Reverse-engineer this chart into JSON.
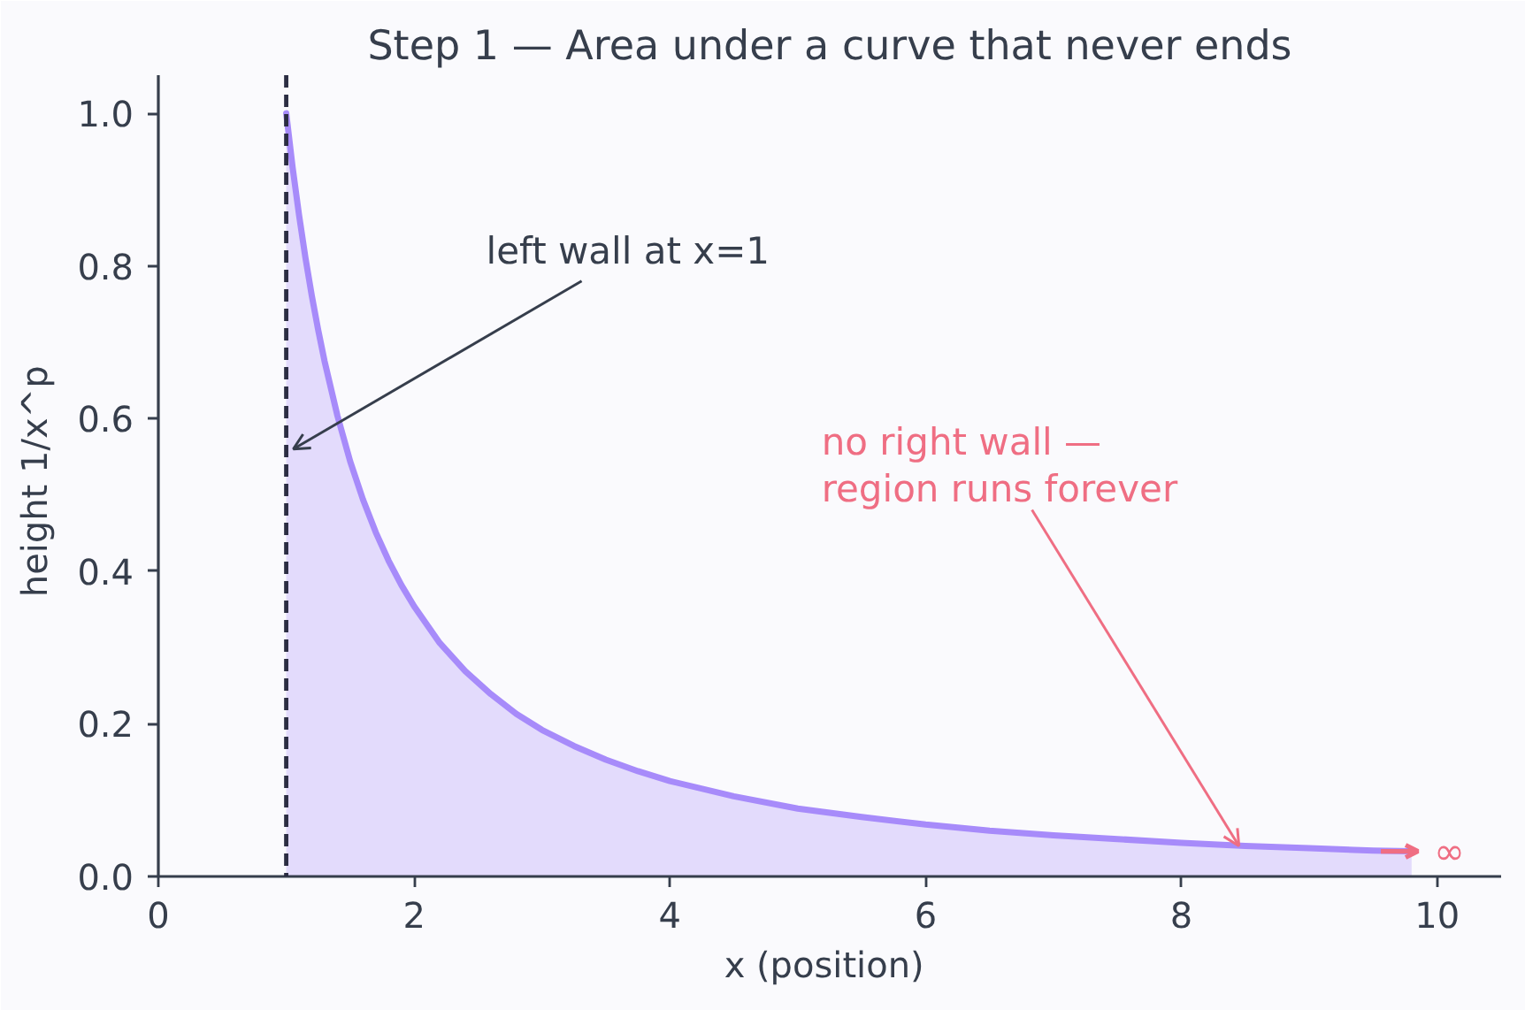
{
  "chart_data": {
    "type": "area",
    "title": "Step 1 — Area under a curve that never ends",
    "xlabel": "x  (position)",
    "ylabel": "height  1/x^p",
    "x": [
      1.0,
      1.05,
      1.1,
      1.15,
      1.2,
      1.25,
      1.3,
      1.4,
      1.5,
      1.6,
      1.7,
      1.8,
      1.9,
      2.0,
      2.2,
      2.4,
      2.6,
      2.8,
      3.0,
      3.25,
      3.5,
      3.75,
      4.0,
      4.5,
      5.0,
      5.5,
      6.0,
      6.5,
      7.0,
      7.5,
      8.0,
      8.5,
      9.0,
      9.5,
      9.8
    ],
    "series": [
      {
        "color": "#a78bfa",
        "values": [
          1.0,
          0.929,
          0.867,
          0.811,
          0.761,
          0.716,
          0.675,
          0.604,
          0.544,
          0.494,
          0.451,
          0.414,
          0.382,
          0.354,
          0.306,
          0.269,
          0.239,
          0.213,
          0.192,
          0.171,
          0.153,
          0.138,
          0.125,
          0.105,
          0.089,
          0.078,
          0.068,
          0.06,
          0.054,
          0.049,
          0.044,
          0.04,
          0.037,
          0.034,
          0.033
        ]
      }
    ],
    "xlim": [
      0,
      10.5
    ],
    "ylim": [
      0,
      1.05
    ],
    "xticks": [
      0,
      2,
      4,
      6,
      8,
      10
    ],
    "yticks": [
      {
        "value": 0,
        "label": "0.0"
      },
      0.2,
      0.4,
      0.6,
      0.8,
      {
        "value": 1,
        "label": "1.0"
      }
    ],
    "ref_lines": [
      {
        "axis": "x",
        "value": 1,
        "color": "#2b2d42",
        "line_style": "dashed"
      }
    ],
    "annotations": [
      {
        "text": "left wall at x=1",
        "x": 1,
        "y": 0.56
      },
      {
        "text": "no right wall —\nregion runs forever",
        "x": 8.45,
        "y": 0.04
      },
      {
        "text": "∞",
        "x": 9.85,
        "y": 0.033
      }
    ]
  }
}
